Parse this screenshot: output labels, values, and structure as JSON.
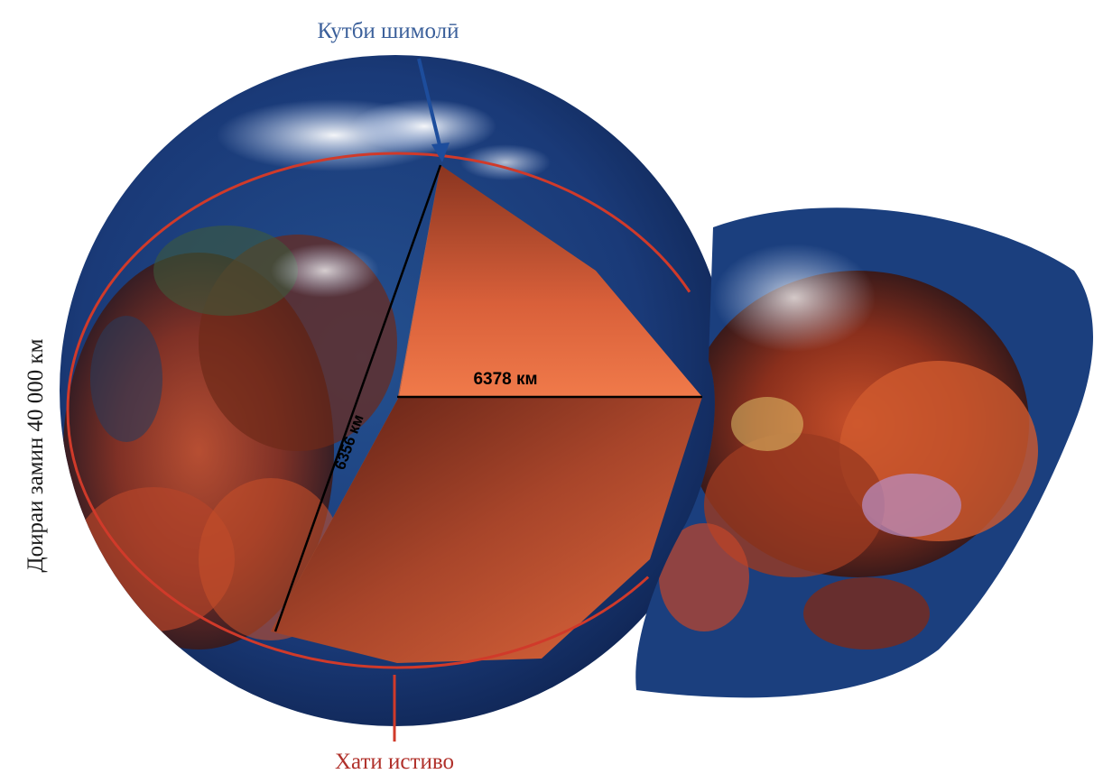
{
  "labels": {
    "north_pole": "Кутби шимолӣ",
    "equator": "Хати истиво",
    "circumference": "Доираи замин 40 000 км",
    "equatorial_radius": "6378 км",
    "polar_radius": "6356 км"
  },
  "colors": {
    "north_pole_label": "#3a5f9a",
    "equator_label": "#b0302a",
    "circumference_label": "#1a1a1a",
    "radius_label": "#000000",
    "ocean": "#1b3f7e",
    "cut_face": "#e8683a",
    "equator_line": "#d03a2a",
    "pole_arrow": "#1d4d9c"
  }
}
